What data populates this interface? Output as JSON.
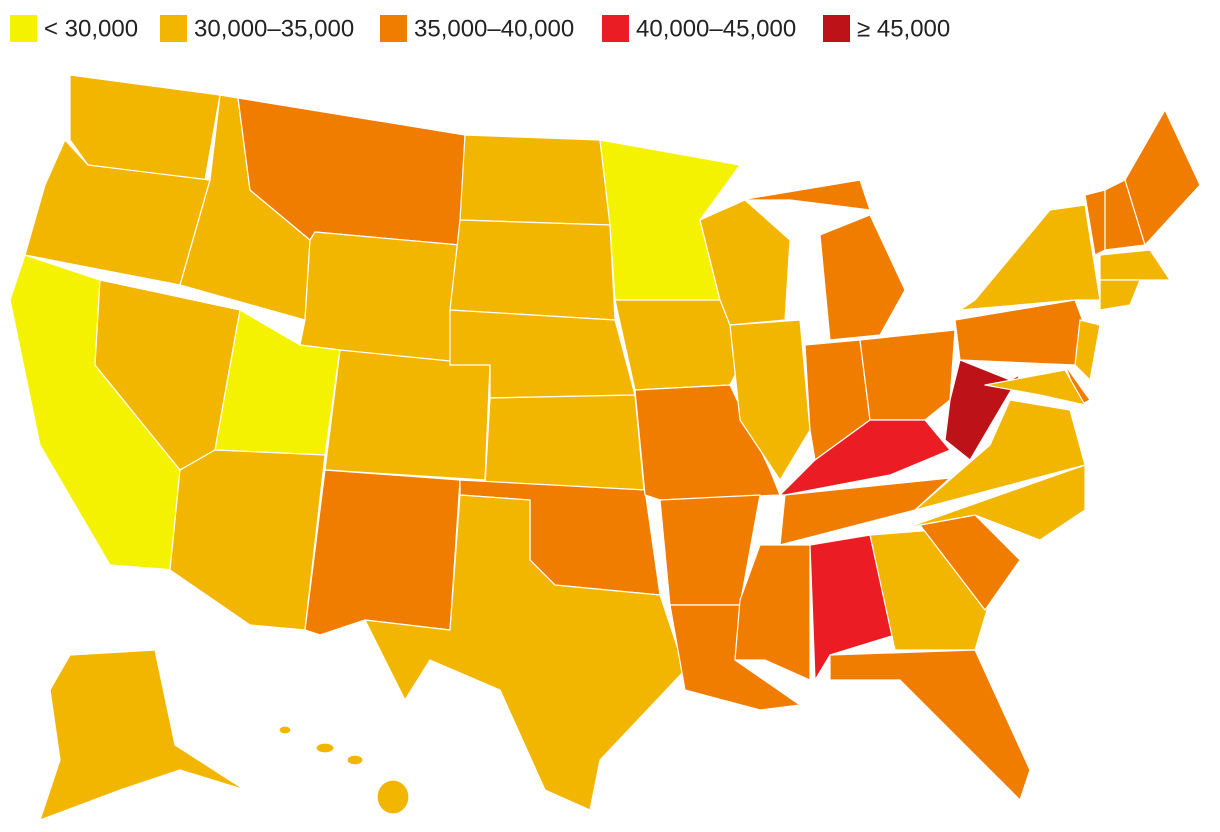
{
  "legend": {
    "items": [
      {
        "label": "< 30,000",
        "color": "#f5f200"
      },
      {
        "label": "30,000–35,000",
        "color": "#f2b600"
      },
      {
        "label": "35,000–40,000",
        "color": "#f07c00"
      },
      {
        "label": "40,000–45,000",
        "color": "#ec1c24"
      },
      {
        "label": "≥ 45,000",
        "color": "#bd1318"
      }
    ]
  }
}
